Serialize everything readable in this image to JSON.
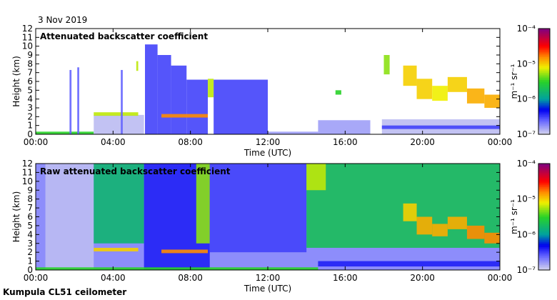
{
  "date": "3 Nov 2019",
  "footer": "Kumpula CL51 ceilometer",
  "chart_data": [
    {
      "type": "heatmap",
      "title": "Attenuated backscatter coefficient",
      "xlabel": "Time (UTC)",
      "ylabel": "Height (km)",
      "xlim": [
        0,
        24
      ],
      "ylim": [
        0,
        12
      ],
      "xticks": [
        "00:00",
        "04:00",
        "08:00",
        "12:00",
        "16:00",
        "20:00",
        "00:00"
      ],
      "yticks": [
        "0",
        "1",
        "2",
        "3",
        "4",
        "5",
        "6",
        "7",
        "8",
        "9",
        "10",
        "11",
        "12"
      ],
      "colorbar": {
        "unit": "m⁻¹ sr⁻¹",
        "ticks": [
          "10⁻⁷",
          "10⁻⁶",
          "10⁻⁵",
          "10⁻⁴"
        ],
        "range_log10": [
          -7,
          -4
        ]
      },
      "background_log10": null,
      "features": [
        {
          "t0": 0,
          "t1": 3.0,
          "h0": 0,
          "h1": 0.3,
          "v": -5.5
        },
        {
          "t0": 1.75,
          "t1": 1.85,
          "h0": 0,
          "h1": 7.3,
          "v": -6.6
        },
        {
          "t0": 2.15,
          "t1": 2.25,
          "h0": 0,
          "h1": 7.6,
          "v": -6.6
        },
        {
          "t0": 3.0,
          "t1": 5.6,
          "h0": 0,
          "h1": 2.2,
          "v": -6.9
        },
        {
          "t0": 3.0,
          "t1": 5.3,
          "h0": 2.1,
          "h1": 2.5,
          "v": -5.2
        },
        {
          "t0": 4.4,
          "t1": 4.5,
          "h0": 0,
          "h1": 7.3,
          "v": -6.6
        },
        {
          "t0": 5.2,
          "t1": 5.3,
          "h0": 7.2,
          "h1": 8.3,
          "v": -5.2
        },
        {
          "t0": 5.65,
          "t1": 6.3,
          "h0": 0,
          "h1": 10.2,
          "v": -6.5
        },
        {
          "t0": 6.3,
          "t1": 7.0,
          "h0": 0,
          "h1": 9.0,
          "v": -6.5
        },
        {
          "t0": 7.0,
          "t1": 7.8,
          "h0": 0,
          "h1": 7.8,
          "v": -6.5
        },
        {
          "t0": 7.8,
          "t1": 8.9,
          "h0": 0,
          "h1": 6.2,
          "v": -6.5
        },
        {
          "t0": 6.5,
          "t1": 8.9,
          "h0": 1.9,
          "h1": 2.3,
          "v": -4.8
        },
        {
          "t0": 8.9,
          "t1": 9.2,
          "h0": 4.2,
          "h1": 6.3,
          "v": -5.2
        },
        {
          "t0": 9.2,
          "t1": 12.0,
          "h0": 0,
          "h1": 6.2,
          "v": -6.5
        },
        {
          "t0": 12.0,
          "t1": 14.6,
          "h0": 0,
          "h1": 0.3,
          "v": -6.8
        },
        {
          "t0": 15.5,
          "t1": 15.8,
          "h0": 4.5,
          "h1": 5.0,
          "v": -5.5
        },
        {
          "t0": 14.6,
          "t1": 17.3,
          "h0": 0,
          "h1": 1.6,
          "v": -6.8
        },
        {
          "t0": 17.9,
          "t1": 24,
          "h0": 0,
          "h1": 1.7,
          "v": -6.9
        },
        {
          "t0": 17.9,
          "t1": 24,
          "h0": 0.6,
          "h1": 1.0,
          "v": -6.5
        },
        {
          "t0": 18.0,
          "t1": 18.3,
          "h0": 6.8,
          "h1": 9.0,
          "v": -5.3
        },
        {
          "t0": 19.0,
          "t1": 19.7,
          "h0": 5.5,
          "h1": 7.8,
          "v": -5.0
        },
        {
          "t0": 19.7,
          "t1": 20.5,
          "h0": 4.0,
          "h1": 6.3,
          "v": -5.0
        },
        {
          "t0": 20.5,
          "t1": 21.3,
          "h0": 3.8,
          "h1": 5.5,
          "v": -5.1
        },
        {
          "t0": 21.3,
          "t1": 22.3,
          "h0": 4.8,
          "h1": 6.5,
          "v": -5.0
        },
        {
          "t0": 22.3,
          "t1": 23.2,
          "h0": 3.5,
          "h1": 5.2,
          "v": -4.9
        },
        {
          "t0": 23.2,
          "t1": 24,
          "h0": 3.0,
          "h1": 4.5,
          "v": -4.9
        }
      ]
    },
    {
      "type": "heatmap",
      "title": "Raw attenuated backscatter coefficient",
      "xlabel": "Time (UTC)",
      "ylabel": "Height (km)",
      "xlim": [
        0,
        24
      ],
      "ylim": [
        0,
        12
      ],
      "xticks": [
        "00:00",
        "04:00",
        "08:00",
        "12:00",
        "16:00",
        "20:00",
        "00:00"
      ],
      "yticks": [
        "0",
        "1",
        "2",
        "3",
        "4",
        "5",
        "6",
        "7",
        "8",
        "9",
        "10",
        "11",
        "12"
      ],
      "colorbar": {
        "unit": "m⁻¹ sr⁻¹",
        "ticks": [
          "10⁻⁷",
          "10⁻⁶",
          "10⁻⁵",
          "10⁻⁴"
        ],
        "range_log10": [
          -7,
          -4
        ]
      },
      "features": [
        {
          "t0": 0,
          "t1": 24,
          "h0": 0,
          "h1": 12,
          "v": -6.7
        },
        {
          "t0": 0.5,
          "t1": 3.0,
          "h0": 0,
          "h1": 12,
          "v": -6.9
        },
        {
          "t0": 3.0,
          "t1": 5.6,
          "h0": 3,
          "h1": 12,
          "v": -5.8
        },
        {
          "t0": 5.6,
          "t1": 9.0,
          "h0": 0,
          "h1": 12,
          "v": -6.4
        },
        {
          "t0": 8.3,
          "t1": 9.0,
          "h0": 3,
          "h1": 12,
          "v": -5.3
        },
        {
          "t0": 9.0,
          "t1": 14.0,
          "h0": 2,
          "h1": 12,
          "v": -6.5
        },
        {
          "t0": 14.0,
          "t1": 24,
          "h0": 2.5,
          "h1": 12,
          "v": -5.7
        },
        {
          "t0": 14.0,
          "t1": 15.0,
          "h0": 9,
          "h1": 12,
          "v": -5.2
        },
        {
          "t0": 3.0,
          "t1": 5.3,
          "h0": 2.1,
          "h1": 2.5,
          "v": -5.0
        },
        {
          "t0": 6.5,
          "t1": 8.9,
          "h0": 1.9,
          "h1": 2.3,
          "v": -4.8
        },
        {
          "t0": 0,
          "t1": 14.6,
          "h0": 0,
          "h1": 0.3,
          "v": -5.5
        },
        {
          "t0": 14.6,
          "t1": 24,
          "h0": 0.4,
          "h1": 1.0,
          "v": -6.4
        },
        {
          "t0": 19.0,
          "t1": 19.7,
          "h0": 5.5,
          "h1": 7.5,
          "v": -5.0
        },
        {
          "t0": 19.7,
          "t1": 20.5,
          "h0": 4.0,
          "h1": 6.0,
          "v": -4.9
        },
        {
          "t0": 20.5,
          "t1": 21.3,
          "h0": 3.8,
          "h1": 5.2,
          "v": -4.9
        },
        {
          "t0": 21.3,
          "t1": 22.3,
          "h0": 4.6,
          "h1": 6.0,
          "v": -4.9
        },
        {
          "t0": 22.3,
          "t1": 23.2,
          "h0": 3.5,
          "h1": 5.0,
          "v": -4.8
        },
        {
          "t0": 23.2,
          "t1": 24,
          "h0": 3.0,
          "h1": 4.2,
          "v": -4.8
        }
      ]
    }
  ]
}
